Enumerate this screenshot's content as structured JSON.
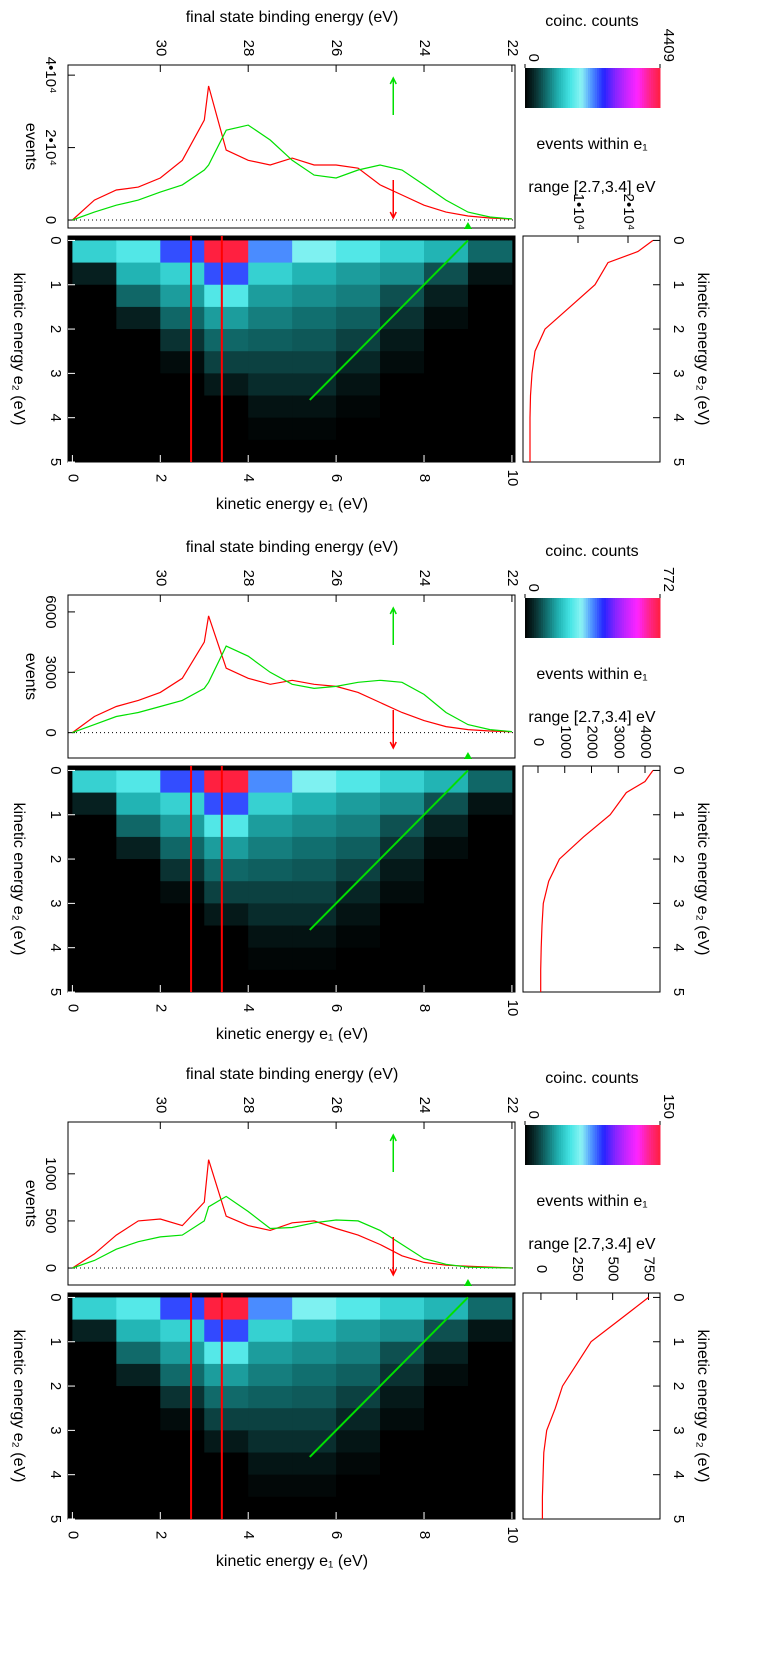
{
  "chart_data": [
    {
      "type": "heatmap",
      "title": "final state binding energy (eV)",
      "x2lim": [
        32.1,
        21.93
      ],
      "x2ticks": [
        30,
        28,
        26,
        24,
        22
      ],
      "xlabel": "kinetic energy e₁ (eV)",
      "xlim": [
        -0.1,
        10.07
      ],
      "xticks": [
        0,
        2,
        4,
        6,
        8,
        10
      ],
      "ylabel": "kinetic energy e₂ (eV)",
      "ylim": [
        -0.1,
        5
      ],
      "yticks": [
        0,
        1,
        2,
        3,
        4,
        5
      ],
      "x": [
        0.5,
        1.5,
        2.5,
        3.5,
        4.5,
        5.5,
        6.5,
        7.5,
        8.5,
        9.5
      ],
      "y": [
        0.25,
        0.75,
        1.25,
        1.75,
        2.25,
        2.75,
        3.25,
        3.75,
        4.25,
        4.75
      ],
      "z": [
        [
          1323,
          1543,
          2425,
          4409,
          2205,
          1764,
          1543,
          1323,
          1102,
          661
        ],
        [
          220,
          1102,
          1323,
          2425,
          1323,
          1102,
          970,
          882,
          529,
          132
        ],
        [
          0,
          661,
          970,
          1543,
          970,
          882,
          794,
          529,
          220,
          0
        ],
        [
          0,
          220,
          661,
          970,
          794,
          705,
          617,
          353,
          88,
          0
        ],
        [
          0,
          0,
          353,
          661,
          617,
          573,
          441,
          176,
          0,
          0
        ],
        [
          0,
          0,
          88,
          441,
          441,
          441,
          265,
          88,
          0,
          0
        ],
        [
          0,
          0,
          0,
          176,
          309,
          309,
          132,
          0,
          0,
          0
        ],
        [
          0,
          0,
          0,
          0,
          132,
          132,
          44,
          0,
          0,
          0
        ],
        [
          0,
          0,
          0,
          0,
          44,
          44,
          0,
          0,
          0,
          0
        ],
        [
          0,
          0,
          0,
          0,
          0,
          0,
          0,
          0,
          0,
          0
        ]
      ],
      "colorbar": {
        "label": "coinc. counts",
        "lim": [
          0,
          4409
        ],
        "ticks": [
          0,
          4409
        ],
        "colors": [
          "#000000",
          "#0a3434",
          "#127474",
          "#22b4b4",
          "#44e4e4",
          "#8cf4f4",
          "#4a8cff",
          "#2424ff",
          "#8424ff",
          "#c824ff",
          "#ff24ff",
          "#ff2490",
          "#ff2040"
        ]
      },
      "e1_range": [
        2.7,
        3.4
      ],
      "range_color": "#ff0000",
      "range_label": [
        "events within e₁",
        "range [2.7,3.4] eV"
      ],
      "guide": {
        "e1": [
          5.4,
          9.0
        ],
        "e2": [
          3.6,
          0
        ],
        "marker_e1": 7.3,
        "color": "#00e000"
      },
      "events": {
        "ylabel": "events",
        "ylim": [
          -2200,
          42800
        ],
        "yticks": [
          0,
          {
            "value": 20000,
            "label": "2•10⁴"
          },
          {
            "value": 40000,
            "label": "4•10⁴"
          }
        ],
        "x": [
          0,
          0.5,
          1,
          1.5,
          2,
          2.5,
          3,
          3.1,
          3.5,
          4,
          4.5,
          5,
          5.5,
          6,
          6.5,
          7,
          7.5,
          8,
          8.5,
          9,
          9.5,
          10
        ],
        "series": [
          {
            "color": "#ff0000",
            "values": [
              0,
              5500,
              8300,
              9100,
              11600,
              16500,
              27600,
              37000,
              19300,
              16500,
              15200,
              17100,
              15200,
              15200,
              14300,
              9700,
              6900,
              4100,
              2200,
              1100,
              550,
              280
            ]
          },
          {
            "color": "#00e000",
            "values": [
              0,
              2200,
              4100,
              5500,
              7700,
              9700,
              13800,
              15200,
              24800,
              26200,
              22100,
              16500,
              12400,
              11600,
              13800,
              15200,
              13800,
              9700,
              5500,
              2200,
              830,
              280
            ]
          }
        ]
      },
      "side": {
        "xlim": [
          -1000,
          26400
        ],
        "xticks": [
          {
            "value": 10000,
            "label": "1•10⁴"
          },
          {
            "value": 20000,
            "label": "2•10⁴"
          }
        ],
        "y": [
          0,
          0.25,
          0.5,
          1,
          1.5,
          2,
          2.5,
          3,
          3.5,
          4,
          4.5,
          5
        ],
        "color": "#ff0000",
        "values": [
          25000,
          22000,
          16000,
          13400,
          8400,
          3400,
          1400,
          800,
          500,
          400,
          400,
          400
        ]
      }
    },
    {
      "type": "heatmap",
      "title": "final state binding energy (eV)",
      "x2lim": [
        32.1,
        21.93
      ],
      "x2ticks": [
        30,
        28,
        26,
        24,
        22
      ],
      "xlabel": "kinetic energy e₁ (eV)",
      "xlim": [
        -0.1,
        10.07
      ],
      "xticks": [
        0,
        2,
        4,
        6,
        8,
        10
      ],
      "ylabel": "kinetic energy e₂ (eV)",
      "ylim": [
        -0.1,
        5
      ],
      "yticks": [
        0,
        1,
        2,
        3,
        4,
        5
      ],
      "x": [
        0.5,
        1.5,
        2.5,
        3.5,
        4.5,
        5.5,
        6.5,
        7.5,
        8.5,
        9.5
      ],
      "y": [
        0.25,
        0.75,
        1.25,
        1.75,
        2.25,
        2.75,
        3.25,
        3.75,
        4.25,
        4.75
      ],
      "z": [
        [
          232,
          270,
          425,
          772,
          386,
          309,
          270,
          232,
          193,
          116
        ],
        [
          39,
          193,
          232,
          425,
          232,
          193,
          170,
          154,
          93,
          23
        ],
        [
          0,
          116,
          170,
          270,
          170,
          154,
          139,
          93,
          39,
          0
        ],
        [
          0,
          39,
          116,
          170,
          139,
          124,
          108,
          62,
          15,
          0
        ],
        [
          0,
          0,
          62,
          116,
          108,
          100,
          77,
          31,
          0,
          0
        ],
        [
          0,
          0,
          15,
          77,
          77,
          77,
          46,
          15,
          0,
          0
        ],
        [
          0,
          0,
          0,
          31,
          54,
          54,
          23,
          0,
          0,
          0
        ],
        [
          0,
          0,
          0,
          0,
          23,
          23,
          8,
          0,
          0,
          0
        ],
        [
          0,
          0,
          0,
          0,
          8,
          8,
          0,
          0,
          0,
          0
        ],
        [
          0,
          0,
          0,
          0,
          0,
          0,
          0,
          0,
          0,
          0
        ]
      ],
      "colorbar": {
        "label": "coinc. counts",
        "lim": [
          0,
          772
        ],
        "ticks": [
          0,
          772
        ],
        "colors": [
          "#000000",
          "#0a3434",
          "#127474",
          "#22b4b4",
          "#44e4e4",
          "#8cf4f4",
          "#4a8cff",
          "#2424ff",
          "#8424ff",
          "#c824ff",
          "#ff24ff",
          "#ff2490",
          "#ff2040"
        ]
      },
      "e1_range": [
        2.7,
        3.4
      ],
      "range_color": "#ff0000",
      "range_label": [
        "events within e₁",
        "range [2.7,3.4] eV"
      ],
      "guide": {
        "e1": [
          5.4,
          9.0
        ],
        "e2": [
          3.6,
          0
        ],
        "marker_e1": 7.3,
        "color": "#00e000"
      },
      "events": {
        "ylabel": "events",
        "ylim": [
          -1260,
          6840
        ],
        "yticks": [
          0,
          3000,
          6000
        ],
        "x": [
          0,
          0.5,
          1,
          1.5,
          2,
          2.5,
          3,
          3.1,
          3.5,
          4,
          4.5,
          5,
          5.5,
          6,
          6.5,
          7,
          7.5,
          8,
          8.5,
          9,
          9.5,
          10
        ],
        "series": [
          {
            "color": "#ff0000",
            "values": [
              0,
              800,
              1300,
              1600,
              2000,
              2700,
              4500,
              5800,
              3200,
              2700,
              2400,
              2600,
              2400,
              2300,
              2000,
              1500,
              1000,
              600,
              300,
              150,
              80,
              40
            ]
          },
          {
            "color": "#00e000",
            "values": [
              0,
              400,
              800,
              1000,
              1300,
              1600,
              2200,
              2500,
              4300,
              3800,
              3000,
              2400,
              2200,
              2300,
              2500,
              2600,
              2500,
              1900,
              1000,
              400,
              150,
              50
            ]
          }
        ]
      },
      "side": {
        "xlim": [
          -560,
          4560
        ],
        "xticks": [
          0,
          1000,
          2000,
          3000,
          4000
        ],
        "y": [
          0,
          0.25,
          0.5,
          1,
          1.5,
          2,
          2.5,
          3,
          3.5,
          4,
          4.5,
          5
        ],
        "color": "#ff0000",
        "values": [
          4300,
          4000,
          3300,
          2700,
          1700,
          800,
          400,
          200,
          150,
          120,
          100,
          100
        ]
      }
    },
    {
      "type": "heatmap",
      "title": "final state binding energy (eV)",
      "x2lim": [
        32.1,
        21.93
      ],
      "x2ticks": [
        30,
        28,
        26,
        24,
        22
      ],
      "xlabel": "kinetic energy e₁ (eV)",
      "xlim": [
        -0.1,
        10.07
      ],
      "xticks": [
        0,
        2,
        4,
        6,
        8,
        10
      ],
      "ylabel": "kinetic energy e₂ (eV)",
      "ylim": [
        -0.1,
        5
      ],
      "yticks": [
        0,
        1,
        2,
        3,
        4,
        5
      ],
      "x": [
        0.5,
        1.5,
        2.5,
        3.5,
        4.5,
        5.5,
        6.5,
        7.5,
        8.5,
        9.5
      ],
      "y": [
        0.25,
        0.75,
        1.25,
        1.75,
        2.25,
        2.75,
        3.25,
        3.75,
        4.25,
        4.75
      ],
      "z": [
        [
          45,
          53,
          83,
          150,
          75,
          60,
          53,
          45,
          38,
          23
        ],
        [
          8,
          38,
          45,
          83,
          45,
          38,
          33,
          30,
          18,
          5
        ],
        [
          0,
          23,
          33,
          53,
          33,
          30,
          27,
          18,
          8,
          0
        ],
        [
          0,
          8,
          23,
          33,
          27,
          24,
          21,
          12,
          3,
          0
        ],
        [
          0,
          0,
          12,
          23,
          21,
          20,
          15,
          6,
          0,
          0
        ],
        [
          0,
          0,
          3,
          15,
          15,
          15,
          9,
          3,
          0,
          0
        ],
        [
          0,
          0,
          0,
          6,
          11,
          11,
          5,
          0,
          0,
          0
        ],
        [
          0,
          0,
          0,
          0,
          5,
          5,
          2,
          0,
          0,
          0
        ],
        [
          0,
          0,
          0,
          0,
          2,
          2,
          0,
          0,
          0,
          0
        ],
        [
          0,
          0,
          0,
          0,
          0,
          0,
          0,
          0,
          0,
          0
        ]
      ],
      "colorbar": {
        "label": "coinc. counts",
        "lim": [
          0,
          150
        ],
        "ticks": [
          0,
          150
        ],
        "colors": [
          "#000000",
          "#0a3434",
          "#127474",
          "#22b4b4",
          "#44e4e4",
          "#8cf4f4",
          "#4a8cff",
          "#2424ff",
          "#8424ff",
          "#c824ff",
          "#ff24ff",
          "#ff2490",
          "#ff2040"
        ]
      },
      "e1_range": [
        2.7,
        3.4
      ],
      "range_color": "#ff0000",
      "range_label": [
        "events within e₁",
        "range [2.7,3.4] eV"
      ],
      "guide": {
        "e1": [
          5.4,
          9.0
        ],
        "e2": [
          3.6,
          0
        ],
        "marker_e1": 7.3,
        "color": "#00e000"
      },
      "events": {
        "ylabel": "events",
        "ylim": [
          -180,
          1550
        ],
        "yticks": [
          0,
          500,
          1000
        ],
        "x": [
          0,
          0.5,
          1,
          1.5,
          2,
          2.5,
          3,
          3.1,
          3.5,
          4,
          4.5,
          5,
          5.5,
          6,
          6.5,
          7,
          7.5,
          8,
          8.5,
          9,
          9.5,
          10
        ],
        "series": [
          {
            "color": "#ff0000",
            "values": [
              0,
              150,
              350,
              500,
              520,
              450,
              700,
              1150,
              550,
              450,
              400,
              480,
              500,
              420,
              350,
              250,
              130,
              60,
              30,
              20,
              10,
              0
            ]
          },
          {
            "color": "#00e000",
            "values": [
              0,
              80,
              200,
              280,
              330,
              350,
              500,
              650,
              760,
              600,
              420,
              430,
              480,
              510,
              500,
              400,
              250,
              100,
              40,
              10,
              5,
              0
            ]
          }
        ]
      },
      "side": {
        "xlim": [
          -125,
          830
        ],
        "xticks": [
          0,
          250,
          500,
          750
        ],
        "y": [
          0,
          0.25,
          0.5,
          1,
          1.5,
          2,
          2.5,
          3,
          3.5,
          4,
          4.5,
          5
        ],
        "color": "#ff0000",
        "values": [
          750,
          650,
          550,
          350,
          250,
          150,
          100,
          40,
          20,
          15,
          10,
          10
        ]
      }
    }
  ]
}
